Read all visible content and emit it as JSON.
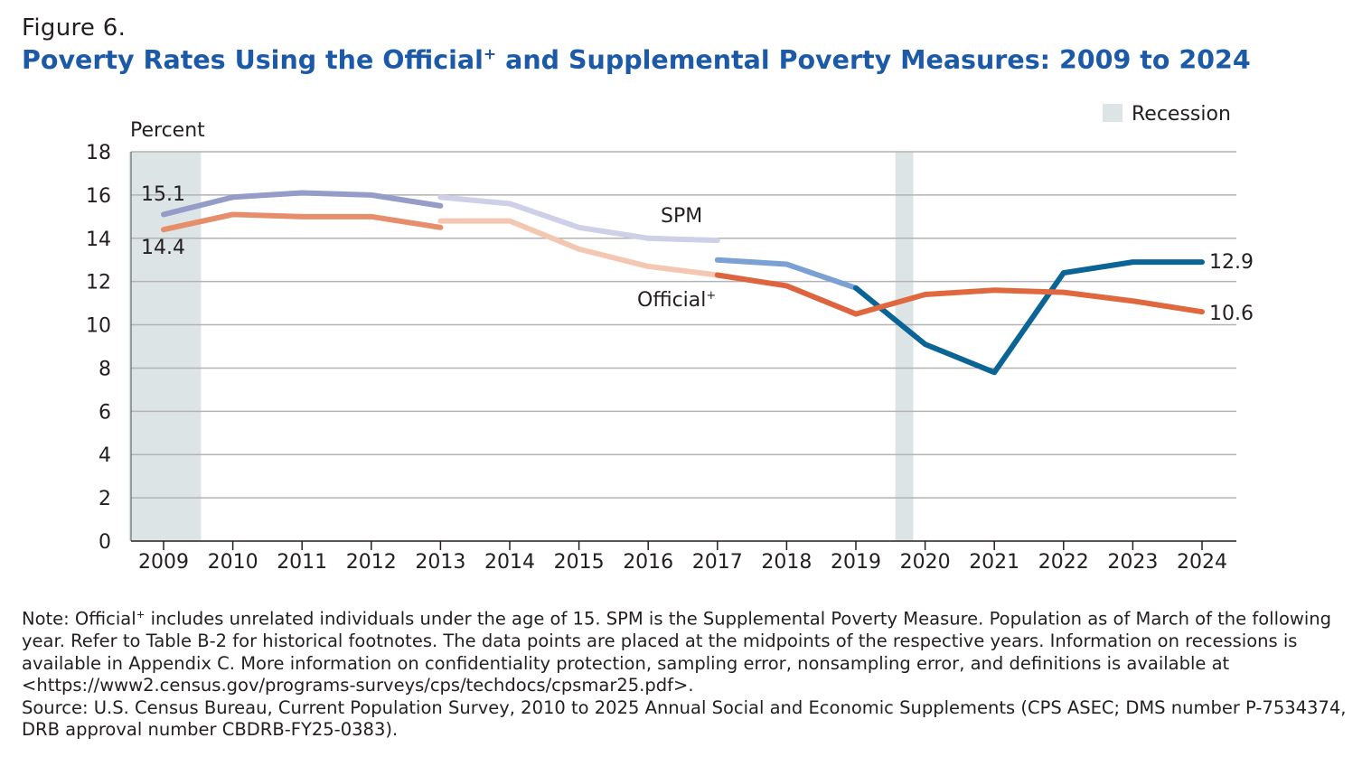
{
  "figure_label": "Figure 6.",
  "title": "Poverty Rates Using the Official+ and Supplemental Poverty Measures: 2009 to 2024",
  "title_parts": {
    "before": "Poverty Rates Using the Official",
    "sup": "+",
    "after": " and Supplemental Poverty Measures: 2009 to 2024"
  },
  "chart_data": {
    "type": "line",
    "title": "Poverty Rates Using the Official+ and Supplemental Poverty Measures: 2009 to 2024",
    "ylabel": "Percent",
    "xlabel": "",
    "ylim": [
      0,
      18
    ],
    "yticks": [
      0,
      2,
      4,
      6,
      8,
      10,
      12,
      14,
      16,
      18
    ],
    "x": [
      2009,
      2010,
      2011,
      2012,
      2013,
      2014,
      2015,
      2016,
      2017,
      2018,
      2019,
      2020,
      2021,
      2022,
      2023,
      2024
    ],
    "grid": true,
    "legend": {
      "entries": [
        "Recession"
      ],
      "placement": "top-right"
    },
    "recession_color": "#dde4e6",
    "recessions": [
      [
        2008.5,
        2009.54
      ],
      [
        2019.57,
        2019.83
      ]
    ],
    "series": [
      {
        "name": "SPM",
        "segments": [
          {
            "color": "#959cc8",
            "points": [
              [
                2009,
                15.1
              ],
              [
                2010,
                15.9
              ],
              [
                2011,
                16.1
              ],
              [
                2012,
                16.0
              ],
              [
                2013,
                15.5
              ]
            ]
          },
          {
            "color": "#cdd0e6",
            "points": [
              [
                2013,
                15.9
              ],
              [
                2014,
                15.6
              ],
              [
                2015,
                14.5
              ],
              [
                2016,
                14.0
              ],
              [
                2017,
                13.9
              ]
            ]
          },
          {
            "color": "#7aa0d4",
            "points": [
              [
                2017,
                13.0
              ],
              [
                2018,
                12.8
              ],
              [
                2019,
                11.7
              ]
            ]
          },
          {
            "color": "#0b6496",
            "points": [
              [
                2019,
                11.7
              ],
              [
                2020,
                9.1
              ],
              [
                2021,
                7.8
              ],
              [
                2022,
                12.4
              ],
              [
                2023,
                12.9
              ],
              [
                2024,
                12.9
              ]
            ]
          }
        ]
      },
      {
        "name": "Official+",
        "segments": [
          {
            "color": "#e68d6b",
            "points": [
              [
                2009,
                14.4
              ],
              [
                2010,
                15.1
              ],
              [
                2011,
                15.0
              ],
              [
                2012,
                15.0
              ],
              [
                2013,
                14.5
              ]
            ]
          },
          {
            "color": "#f4c7b2",
            "points": [
              [
                2013,
                14.8
              ],
              [
                2014,
                14.8
              ],
              [
                2015,
                13.5
              ],
              [
                2016,
                12.7
              ],
              [
                2017,
                12.3
              ]
            ]
          },
          {
            "color": "#de6440",
            "points": [
              [
                2017,
                12.3
              ],
              [
                2018,
                11.8
              ],
              [
                2019,
                10.5
              ]
            ]
          },
          {
            "color": "#e0683f",
            "points": [
              [
                2019,
                10.5
              ],
              [
                2020,
                11.4
              ],
              [
                2021,
                11.6
              ],
              [
                2022,
                11.5
              ],
              [
                2023,
                11.1
              ],
              [
                2024,
                10.6
              ]
            ]
          }
        ]
      }
    ],
    "annotations": {
      "spm_label": "SPM",
      "official_label": "Official",
      "official_sup": "+",
      "spm_start": "15.1",
      "official_start": "14.4",
      "spm_end": "12.9",
      "official_end": "10.6"
    }
  },
  "note": {
    "note_prefix": "Note: Official",
    "note_sup": "+",
    "note_rest": " includes unrelated individuals under the age of 15. SPM is the Supplemental Poverty Measure. Population as of March of the following year. Refer to Table B-2 for historical footnotes. The data points are placed at the midpoints of the respective years. Information on recessions is available in Appendix C. More information on confidentiality protection, sampling error, nonsampling error, and definitions is available at <https://www2.census.gov/programs-surveys/cps/techdocs/cpsmar25.pdf>.",
    "source": "Source: U.S. Census Bureau, Current Population Survey, 2010 to 2025 Annual Social and Economic Supplements (CPS ASEC; DMS number P-7534374, DRB approval number CBDRB-FY25-0383)."
  }
}
